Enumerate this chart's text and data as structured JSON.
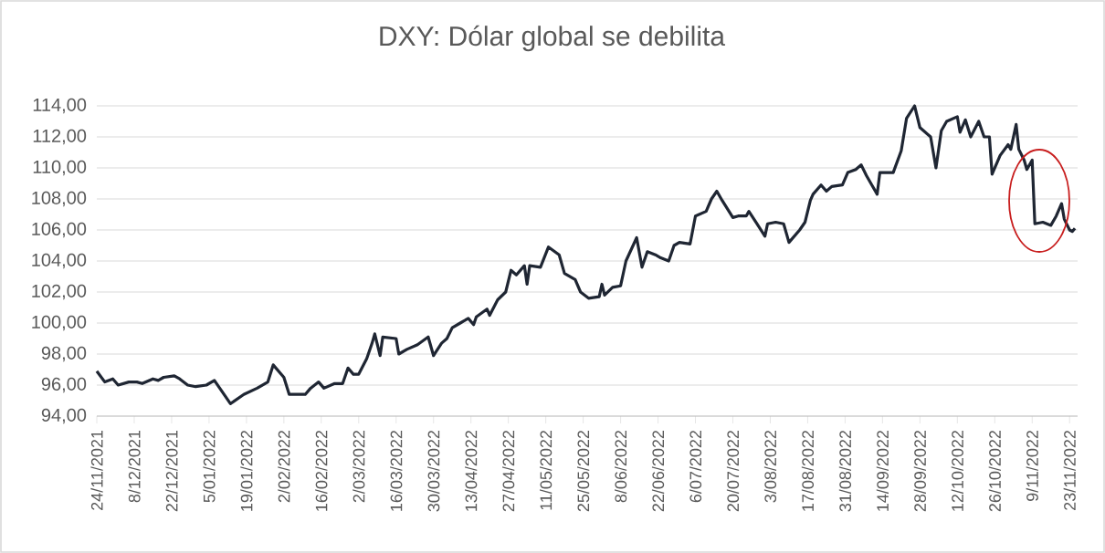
{
  "chart_data": {
    "type": "line",
    "title": "DXY: Dólar global se debilita",
    "series": [
      {
        "color": "#1f2633",
        "x": [
          "2021-11-24",
          "2021-11-27",
          "2021-11-30",
          "2021-12-02",
          "2021-12-06",
          "2021-12-09",
          "2021-12-11",
          "2021-12-15",
          "2021-12-17",
          "2021-12-19",
          "2021-12-23",
          "2021-12-25",
          "2021-12-28",
          "2021-12-31",
          "2022-01-04",
          "2022-01-07",
          "2022-01-09",
          "2022-01-13",
          "2022-01-18",
          "2022-01-23",
          "2022-01-27",
          "2022-01-29",
          "2022-02-02",
          "2022-02-04",
          "2022-02-10",
          "2022-02-12",
          "2022-02-15",
          "2022-02-17",
          "2022-02-21",
          "2022-02-24",
          "2022-02-26",
          "2022-02-28",
          "2022-03-02",
          "2022-03-05",
          "2022-03-07",
          "2022-03-08",
          "2022-03-10",
          "2022-03-11",
          "2022-03-16",
          "2022-03-17",
          "2022-03-20",
          "2022-03-24",
          "2022-03-28",
          "2022-03-30",
          "2022-04-02",
          "2022-04-04",
          "2022-04-06",
          "2022-04-09",
          "2022-04-12",
          "2022-04-14",
          "2022-04-15",
          "2022-04-19",
          "2022-04-20",
          "2022-04-23",
          "2022-04-26",
          "2022-04-28",
          "2022-04-30",
          "2022-05-03",
          "2022-05-04",
          "2022-05-05",
          "2022-05-09",
          "2022-05-12",
          "2022-05-16",
          "2022-05-18",
          "2022-05-22",
          "2022-05-24",
          "2022-05-27",
          "2022-05-31",
          "2022-06-01",
          "2022-06-02",
          "2022-06-05",
          "2022-06-08",
          "2022-06-10",
          "2022-06-14",
          "2022-06-16",
          "2022-06-18",
          "2022-06-21",
          "2022-06-23",
          "2022-06-26",
          "2022-06-28",
          "2022-06-30",
          "2022-07-04",
          "2022-07-06",
          "2022-07-10",
          "2022-07-12",
          "2022-07-14",
          "2022-07-16",
          "2022-07-20",
          "2022-07-22",
          "2022-07-25",
          "2022-07-26",
          "2022-07-29",
          "2022-08-01",
          "2022-08-02",
          "2022-08-05",
          "2022-08-08",
          "2022-08-10",
          "2022-08-14",
          "2022-08-16",
          "2022-08-18",
          "2022-08-19",
          "2022-08-22",
          "2022-08-24",
          "2022-08-26",
          "2022-08-30",
          "2022-09-01",
          "2022-09-04",
          "2022-09-06",
          "2022-09-08",
          "2022-09-10",
          "2022-09-12",
          "2022-09-13",
          "2022-09-18",
          "2022-09-21",
          "2022-09-23",
          "2022-09-26",
          "2022-09-28",
          "2022-10-02",
          "2022-10-04",
          "2022-10-06",
          "2022-10-08",
          "2022-10-12",
          "2022-10-13",
          "2022-10-15",
          "2022-10-17",
          "2022-10-20",
          "2022-10-22",
          "2022-10-24",
          "2022-10-25",
          "2022-10-28",
          "2022-10-31",
          "2022-11-01",
          "2022-11-03",
          "2022-11-04",
          "2022-11-06",
          "2022-11-07",
          "2022-11-09",
          "2022-11-10",
          "2022-11-13",
          "2022-11-16",
          "2022-11-18",
          "2022-11-20",
          "2022-11-21",
          "2022-11-23",
          "2022-11-24",
          "2022-11-25"
        ],
        "values": [
          96.9,
          96.2,
          96.4,
          96.0,
          96.2,
          96.2,
          96.1,
          96.4,
          96.3,
          96.5,
          96.6,
          96.4,
          96.0,
          95.9,
          96.0,
          96.3,
          95.8,
          94.8,
          95.4,
          95.8,
          96.2,
          97.3,
          96.5,
          95.4,
          95.4,
          95.8,
          96.2,
          95.8,
          96.1,
          96.1,
          97.1,
          96.7,
          96.7,
          97.7,
          98.7,
          99.3,
          97.9,
          99.1,
          99.0,
          98.0,
          98.3,
          98.6,
          99.1,
          97.9,
          98.7,
          99.0,
          99.7,
          100.0,
          100.3,
          99.9,
          100.4,
          100.9,
          100.5,
          101.5,
          102.0,
          103.4,
          103.1,
          103.7,
          102.5,
          103.7,
          103.6,
          104.9,
          104.4,
          103.2,
          102.8,
          102.0,
          101.6,
          101.7,
          102.5,
          101.8,
          102.3,
          102.4,
          104.0,
          105.5,
          103.6,
          104.6,
          104.4,
          104.2,
          104.0,
          105.0,
          105.2,
          105.1,
          106.9,
          107.2,
          108.0,
          108.5,
          107.9,
          106.8,
          106.9,
          106.9,
          107.2,
          106.4,
          105.6,
          106.4,
          106.5,
          106.4,
          105.2,
          106.0,
          106.5,
          107.9,
          108.3,
          108.9,
          108.5,
          108.8,
          108.9,
          109.7,
          109.9,
          110.2,
          109.5,
          108.9,
          108.3,
          109.7,
          109.7,
          111.1,
          113.2,
          114.0,
          112.6,
          112.0,
          110.0,
          112.4,
          113.0,
          113.3,
          112.3,
          113.1,
          112.0,
          113.0,
          112.0,
          112.0,
          109.6,
          110.8,
          111.5,
          111.2,
          112.8,
          111.2,
          110.5,
          109.9,
          110.5,
          106.4,
          106.5,
          106.3,
          106.9,
          107.7,
          106.7,
          106.0,
          105.9,
          106.1
        ]
      }
    ],
    "xlim": [
      "2021-11-24",
      "2022-11-26"
    ],
    "xticks": [
      {
        "value": "2021-11-24",
        "label": "24/11/2021"
      },
      {
        "value": "2021-12-08",
        "label": "8/12/2021"
      },
      {
        "value": "2021-12-22",
        "label": "22/12/2021"
      },
      {
        "value": "2022-01-05",
        "label": "5/01/2022"
      },
      {
        "value": "2022-01-19",
        "label": "19/01/2022"
      },
      {
        "value": "2022-02-02",
        "label": "2/02/2022"
      },
      {
        "value": "2022-02-16",
        "label": "16/02/2022"
      },
      {
        "value": "2022-03-02",
        "label": "2/03/2022"
      },
      {
        "value": "2022-03-16",
        "label": "16/03/2022"
      },
      {
        "value": "2022-03-30",
        "label": "30/03/2022"
      },
      {
        "value": "2022-04-13",
        "label": "13/04/2022"
      },
      {
        "value": "2022-04-27",
        "label": "27/04/2022"
      },
      {
        "value": "2022-05-11",
        "label": "11/05/2022"
      },
      {
        "value": "2022-05-25",
        "label": "25/05/2022"
      },
      {
        "value": "2022-06-08",
        "label": "8/06/2022"
      },
      {
        "value": "2022-06-22",
        "label": "22/06/2022"
      },
      {
        "value": "2022-07-06",
        "label": "6/07/2022"
      },
      {
        "value": "2022-07-20",
        "label": "20/07/2022"
      },
      {
        "value": "2022-08-03",
        "label": "3/08/2022"
      },
      {
        "value": "2022-08-17",
        "label": "17/08/2022"
      },
      {
        "value": "2022-08-31",
        "label": "31/08/2022"
      },
      {
        "value": "2022-09-14",
        "label": "14/09/2022"
      },
      {
        "value": "2022-09-28",
        "label": "28/09/2022"
      },
      {
        "value": "2022-10-12",
        "label": "12/10/2022"
      },
      {
        "value": "2022-10-26",
        "label": "26/10/2022"
      },
      {
        "value": "2022-11-09",
        "label": "9/11/2022"
      },
      {
        "value": "2022-11-23",
        "label": "23/11/2022"
      }
    ],
    "ylim": [
      94,
      114
    ],
    "yticks": [
      {
        "value": 94,
        "label": "94,00"
      },
      {
        "value": 96,
        "label": "96,00"
      },
      {
        "value": 98,
        "label": "98,00"
      },
      {
        "value": 100,
        "label": "100,00"
      },
      {
        "value": 102,
        "label": "102,00"
      },
      {
        "value": 104,
        "label": "104,00"
      },
      {
        "value": 106,
        "label": "106,00"
      },
      {
        "value": 108,
        "label": "108,00"
      },
      {
        "value": 110,
        "label": "110,00"
      },
      {
        "value": 112,
        "label": "112,00"
      },
      {
        "value": 114,
        "label": "114,00"
      }
    ],
    "grid": "y",
    "marker": "none",
    "line_style": "solid"
  }
}
